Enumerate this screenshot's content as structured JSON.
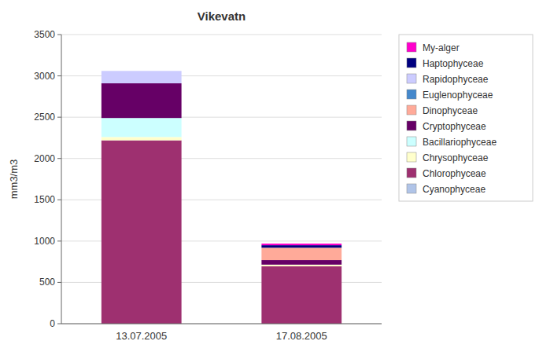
{
  "chart_data": {
    "type": "bar",
    "stacked": true,
    "title": "Vikevatn",
    "ylabel": "mm3/m3",
    "categories": [
      "13.07.2005",
      "17.08.2005"
    ],
    "series": [
      {
        "name": "Cyanophyceae",
        "color": "#b0c4e8",
        "values": [
          0,
          0
        ]
      },
      {
        "name": "Chlorophyceae",
        "color": "#9e3070",
        "values": [
          2220,
          695
        ]
      },
      {
        "name": "Chrysophyceae",
        "color": "#ffffcc",
        "values": [
          40,
          20
        ]
      },
      {
        "name": "Bacillariophyceae",
        "color": "#ccffff",
        "values": [
          230,
          0
        ]
      },
      {
        "name": "Cryptophyceae",
        "color": "#660066",
        "values": [
          420,
          55
        ]
      },
      {
        "name": "Dinophyceae",
        "color": "#ffaa99",
        "values": [
          0,
          150
        ]
      },
      {
        "name": "Euglenophyceae",
        "color": "#4488cc",
        "values": [
          0,
          0
        ]
      },
      {
        "name": "Rapidophyceae",
        "color": "#ccccff",
        "values": [
          150,
          0
        ]
      },
      {
        "name": "Haptophyceae",
        "color": "#000080",
        "values": [
          0,
          30
        ]
      },
      {
        "name": "My-alger",
        "color": "#ff00cc",
        "values": [
          0,
          20
        ]
      }
    ],
    "ylim": [
      0,
      3500
    ],
    "yticks": [
      0,
      500,
      1000,
      1500,
      2000,
      2500,
      3000,
      3500
    ],
    "grid": true,
    "legend": "right"
  }
}
